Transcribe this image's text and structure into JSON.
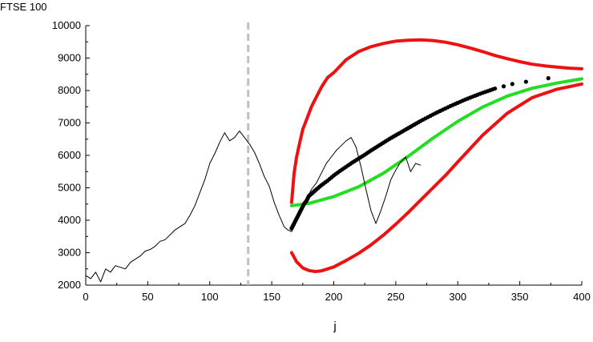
{
  "chart_data": {
    "type": "line",
    "title": "",
    "ylabel": "FTSE 100",
    "xlabel": "j",
    "xlim": [
      0,
      400
    ],
    "ylim": [
      2000,
      10000
    ],
    "x_ticks": [
      0,
      50,
      100,
      150,
      200,
      250,
      300,
      350,
      400
    ],
    "y_ticks": [
      2000,
      3000,
      4000,
      5000,
      6000,
      7000,
      8000,
      9000,
      10000
    ],
    "grid": false,
    "legend": "none",
    "annotations": [
      {
        "kind": "vertical-dashed-line",
        "x": 131,
        "color": "#c0c0c0"
      }
    ],
    "series": [
      {
        "role": "observed",
        "style": "thin-line",
        "color": "#000000",
        "x": [
          0,
          4,
          8,
          12,
          16,
          20,
          24,
          28,
          32,
          36,
          40,
          44,
          48,
          52,
          56,
          60,
          64,
          68,
          72,
          76,
          80,
          84,
          88,
          92,
          96,
          100,
          104,
          108,
          112,
          116,
          120,
          124,
          128,
          132,
          136,
          140,
          144,
          148,
          152,
          156,
          160,
          163,
          166,
          168,
          170,
          174,
          178,
          182,
          186,
          190,
          194,
          198,
          202,
          206,
          210,
          214,
          218,
          222,
          226,
          230,
          234,
          238,
          242,
          246,
          250,
          254,
          258,
          262,
          266,
          270
        ],
        "values": [
          2300,
          2200,
          2400,
          2100,
          2500,
          2400,
          2600,
          2550,
          2500,
          2700,
          2800,
          2900,
          3050,
          3100,
          3200,
          3350,
          3400,
          3550,
          3700,
          3800,
          3900,
          4150,
          4450,
          4850,
          5250,
          5750,
          6050,
          6400,
          6700,
          6450,
          6550,
          6750,
          6550,
          6350,
          6100,
          5750,
          5350,
          5050,
          4550,
          4150,
          3800,
          3700,
          3650,
          3800,
          3950,
          4250,
          4650,
          4950,
          5150,
          5450,
          5750,
          5950,
          6150,
          6300,
          6450,
          6550,
          6250,
          5650,
          4950,
          4300,
          3900,
          4300,
          4750,
          5250,
          5550,
          5800,
          5950,
          5500,
          5750,
          5700
        ]
      },
      {
        "role": "median-forecast",
        "style": "dots",
        "color": "#000000",
        "x": [
          166,
          168,
          170,
          172,
          174,
          176,
          178,
          180,
          183,
          186,
          190,
          195,
          200,
          205,
          210,
          215,
          220,
          225,
          230,
          235,
          240,
          245,
          250,
          255,
          260,
          265,
          270,
          276,
          282,
          288,
          294,
          300,
          306,
          312,
          318,
          324,
          330,
          337,
          344,
          355,
          373
        ],
        "values": [
          3750,
          3900,
          4050,
          4200,
          4350,
          4500,
          4600,
          4750,
          4850,
          4950,
          5080,
          5220,
          5380,
          5520,
          5650,
          5780,
          5900,
          6020,
          6150,
          6270,
          6390,
          6510,
          6620,
          6730,
          6840,
          6950,
          7060,
          7180,
          7300,
          7410,
          7520,
          7620,
          7720,
          7810,
          7900,
          7980,
          8060,
          8130,
          8200,
          8270,
          8380
        ]
      },
      {
        "role": "alternative-forecast",
        "style": "thick-line",
        "color": "#22dd22",
        "x": [
          166,
          180,
          200,
          220,
          240,
          260,
          280,
          300,
          320,
          340,
          360,
          380,
          400
        ],
        "values": [
          4450,
          4520,
          4730,
          5030,
          5450,
          5970,
          6530,
          7050,
          7490,
          7830,
          8070,
          8230,
          8360
        ]
      },
      {
        "role": "upper-band",
        "style": "thick-line",
        "color": "#ee1111",
        "x": [
          166,
          168,
          170,
          172,
          175,
          178,
          182,
          186,
          190,
          195,
          200,
          210,
          220,
          230,
          240,
          250,
          260,
          270,
          280,
          290,
          300,
          310,
          320,
          330,
          340,
          350,
          360,
          370,
          380,
          390,
          400
        ],
        "values": [
          4550,
          5450,
          5950,
          6300,
          6800,
          7100,
          7500,
          7800,
          8100,
          8400,
          8550,
          8950,
          9200,
          9350,
          9450,
          9520,
          9550,
          9560,
          9540,
          9490,
          9410,
          9310,
          9200,
          9080,
          8980,
          8890,
          8810,
          8760,
          8720,
          8690,
          8670
        ]
      },
      {
        "role": "lower-band",
        "style": "thick-line",
        "color": "#ee1111",
        "x": [
          166,
          170,
          175,
          180,
          185,
          190,
          200,
          210,
          220,
          230,
          240,
          250,
          260,
          270,
          280,
          290,
          300,
          320,
          340,
          360,
          380,
          400
        ],
        "values": [
          3000,
          2720,
          2530,
          2450,
          2420,
          2440,
          2560,
          2760,
          2980,
          3240,
          3540,
          3880,
          4240,
          4620,
          5000,
          5380,
          5800,
          6620,
          7300,
          7780,
          8040,
          8200
        ]
      }
    ]
  }
}
